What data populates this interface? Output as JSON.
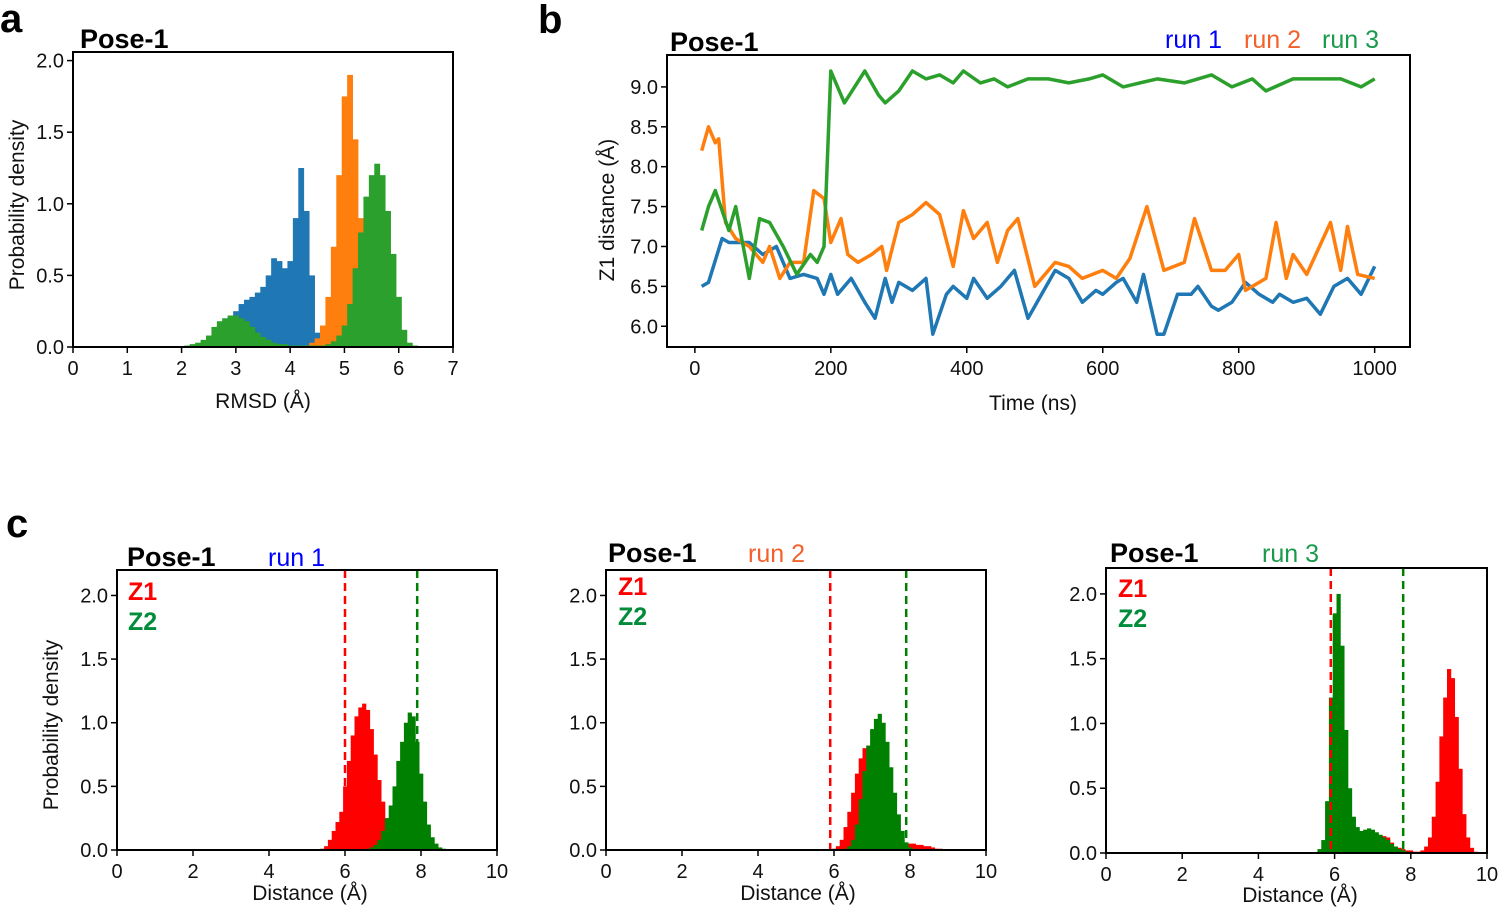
{
  "figure": {
    "letters": [
      "a",
      "b",
      "c"
    ]
  },
  "colors": {
    "run1": "#1f77b4",
    "run2": "#ff7f0e",
    "run3": "#2ca02c",
    "run1_label": "#0000ff",
    "run2_label": "#f4602a",
    "run3_label": "#1a9a4a",
    "z1": "#ff0000",
    "z2": "#008000",
    "z2_label": "#008c3a"
  },
  "chart_data": [
    {
      "id": "a",
      "type": "histogram",
      "title": "Pose-1",
      "xlabel": "RMSD (Å)",
      "ylabel": "Probability density",
      "xlim": [
        0,
        7
      ],
      "ylim": [
        0,
        2.06
      ],
      "xticks": [
        0,
        1,
        2,
        3,
        4,
        5,
        6,
        7
      ],
      "xtick_labels": [
        "0",
        "1",
        "2",
        "3",
        "4",
        "5",
        "6",
        "7"
      ],
      "yticks": [
        0,
        0.5,
        1,
        1.5,
        2
      ],
      "ytick_labels": [
        "0.0",
        "0.5",
        "1.0",
        "1.5",
        "2.0"
      ],
      "bin_width": 0.1,
      "series": [
        {
          "name": "run 1",
          "color_key": "run1",
          "start": 2.4,
          "values": [
            0.01,
            0.03,
            0.08,
            0.15,
            0.2,
            0.22,
            0.25,
            0.3,
            0.33,
            0.35,
            0.38,
            0.42,
            0.5,
            0.62,
            0.6,
            0.55,
            0.6,
            0.9,
            1.25,
            0.95,
            0.5,
            0.1
          ]
        },
        {
          "name": "run 2",
          "color_key": "run2",
          "start": 4.3,
          "values": [
            0.01,
            0.03,
            0.06,
            0.15,
            0.35,
            0.7,
            1.2,
            1.75,
            1.9,
            1.45,
            0.9,
            0.45,
            0.2,
            0.1,
            0.06,
            0.04,
            0.03,
            0.02,
            0.02,
            0.01
          ]
        },
        {
          "name": "run 3",
          "color_key": "run3",
          "start": 2.1,
          "values": [
            0.01,
            0.02,
            0.03,
            0.05,
            0.08,
            0.14,
            0.18,
            0.2,
            0.22,
            0.22,
            0.2,
            0.18,
            0.14,
            0.1,
            0.07,
            0.05,
            0.03,
            0.02,
            0.02,
            0.01,
            0.01,
            0.01,
            0.01,
            0.01,
            0.01,
            0.01,
            0.02,
            0.04,
            0.08,
            0.15,
            0.3,
            0.55,
            0.8,
            1.05,
            1.2,
            1.28,
            1.2,
            0.95,
            0.65,
            0.35,
            0.12,
            0.03,
            0.01
          ]
        }
      ]
    },
    {
      "id": "b",
      "type": "line",
      "title": "Pose-1",
      "xlabel": "Time (ns)",
      "ylabel": "Z1 distance (Å)",
      "xlim": [
        -41,
        1052
      ],
      "ylim": [
        5.74,
        9.4
      ],
      "xticks": [
        0,
        200,
        400,
        600,
        800,
        1000
      ],
      "xtick_labels": [
        "0",
        "200",
        "400",
        "600",
        "800",
        "1000"
      ],
      "yticks": [
        6,
        6.5,
        7,
        7.5,
        8,
        8.5,
        9
      ],
      "ytick_labels": [
        "6.0",
        "6.5",
        "7.0",
        "7.5",
        "8.0",
        "8.5",
        "9.0"
      ],
      "legend": [
        "run 1",
        "run 2",
        "run 3"
      ],
      "legend_position": "top-right",
      "series": [
        {
          "name": "run 1",
          "color_key": "run1",
          "x": [
            10,
            20,
            40,
            50,
            80,
            100,
            120,
            140,
            160,
            180,
            190,
            200,
            210,
            230,
            250,
            265,
            280,
            290,
            300,
            320,
            340,
            350,
            370,
            380,
            400,
            410,
            430,
            450,
            470,
            490,
            510,
            530,
            550,
            570,
            590,
            600,
            620,
            630,
            650,
            660,
            680,
            690,
            710,
            730,
            740,
            760,
            770,
            790,
            810,
            830,
            850,
            860,
            880,
            900,
            920,
            940,
            960,
            980,
            1000
          ],
          "y": [
            6.5,
            6.55,
            7.1,
            7.05,
            7.05,
            6.9,
            7.0,
            6.6,
            6.65,
            6.6,
            6.4,
            6.65,
            6.4,
            6.6,
            6.3,
            6.1,
            6.6,
            6.3,
            6.55,
            6.45,
            6.6,
            5.9,
            6.4,
            6.5,
            6.35,
            6.6,
            6.35,
            6.5,
            6.7,
            6.1,
            6.4,
            6.7,
            6.6,
            6.3,
            6.45,
            6.4,
            6.55,
            6.6,
            6.3,
            6.65,
            5.9,
            5.9,
            6.4,
            6.4,
            6.5,
            6.25,
            6.2,
            6.3,
            6.55,
            6.4,
            6.3,
            6.4,
            6.3,
            6.35,
            6.15,
            6.5,
            6.6,
            6.4,
            6.75
          ]
        },
        {
          "name": "run 2",
          "color_key": "run2",
          "x": [
            10,
            20,
            30,
            35,
            45,
            60,
            80,
            100,
            110,
            125,
            140,
            160,
            175,
            190,
            200,
            215,
            225,
            240,
            260,
            275,
            282,
            300,
            320,
            340,
            360,
            380,
            395,
            410,
            430,
            445,
            460,
            475,
            500,
            530,
            550,
            570,
            600,
            620,
            640,
            665,
            690,
            720,
            735,
            760,
            780,
            800,
            810,
            840,
            855,
            870,
            880,
            900,
            935,
            950,
            960,
            975,
            1000
          ],
          "y": [
            8.2,
            8.5,
            8.3,
            8.35,
            7.3,
            7.1,
            7.0,
            6.8,
            7.0,
            6.6,
            6.8,
            6.8,
            7.7,
            7.6,
            7.05,
            7.35,
            6.9,
            6.8,
            6.9,
            7.0,
            6.7,
            7.3,
            7.4,
            7.55,
            7.4,
            6.75,
            7.45,
            7.1,
            7.3,
            6.8,
            7.2,
            7.35,
            6.5,
            6.8,
            6.75,
            6.6,
            6.7,
            6.6,
            6.85,
            7.5,
            6.7,
            6.8,
            7.35,
            6.7,
            6.7,
            6.9,
            6.45,
            6.6,
            7.3,
            6.6,
            6.9,
            6.65,
            7.3,
            6.7,
            7.25,
            6.65,
            6.6
          ]
        },
        {
          "name": "run 3",
          "color_key": "run3",
          "x": [
            10,
            20,
            30,
            50,
            60,
            80,
            95,
            110,
            130,
            150,
            170,
            180,
            190,
            200,
            220,
            250,
            270,
            280,
            300,
            320,
            340,
            360,
            380,
            395,
            420,
            440,
            460,
            490,
            520,
            550,
            580,
            600,
            630,
            680,
            720,
            760,
            790,
            820,
            840,
            880,
            920,
            950,
            980,
            1000
          ],
          "y": [
            7.2,
            7.5,
            7.7,
            7.2,
            7.5,
            6.6,
            7.35,
            7.3,
            7.0,
            6.65,
            6.9,
            6.8,
            7.0,
            9.2,
            8.8,
            9.2,
            8.9,
            8.8,
            8.95,
            9.2,
            9.1,
            9.15,
            9.05,
            9.2,
            9.05,
            9.1,
            9.0,
            9.1,
            9.1,
            9.05,
            9.1,
            9.15,
            9.0,
            9.1,
            9.05,
            9.15,
            9.0,
            9.1,
            8.95,
            9.1,
            9.1,
            9.1,
            9.0,
            9.1
          ]
        }
      ]
    },
    {
      "id": "c1",
      "type": "histogram",
      "title": "Pose-1",
      "run_label": "run 1",
      "run_color_key": "run1_label",
      "xlabel": "Distance (Å)",
      "ylabel": "Probability density",
      "xlim": [
        0,
        10
      ],
      "ylim": [
        0,
        2.2
      ],
      "xticks": [
        0,
        2,
        4,
        6,
        8,
        10
      ],
      "xtick_labels": [
        "0",
        "2",
        "4",
        "6",
        "8",
        "10"
      ],
      "yticks": [
        0,
        0.5,
        1,
        1.5,
        2
      ],
      "ytick_labels": [
        "0.0",
        "0.5",
        "1.0",
        "1.5",
        "2.0"
      ],
      "legend": [
        "Z1",
        "Z2"
      ],
      "legend_position": "top-left",
      "vlines": [
        {
          "x": 6.0,
          "color_key": "z1",
          "style": "dashed"
        },
        {
          "x": 7.9,
          "color_key": "z2",
          "style": "dashed"
        }
      ],
      "bin_width": 0.1,
      "series": [
        {
          "name": "Z1",
          "color_key": "z1",
          "start": 5.4,
          "values": [
            0.01,
            0.03,
            0.08,
            0.15,
            0.22,
            0.3,
            0.5,
            0.7,
            0.9,
            1.05,
            1.12,
            1.15,
            1.1,
            0.95,
            0.75,
            0.55,
            0.38,
            0.25,
            0.15,
            0.08,
            0.04,
            0.02,
            0.01
          ]
        },
        {
          "name": "Z2",
          "color_key": "z2",
          "start": 6.6,
          "values": [
            0.01,
            0.02,
            0.04,
            0.08,
            0.15,
            0.25,
            0.35,
            0.5,
            0.7,
            0.85,
            1.0,
            1.08,
            1.05,
            0.85,
            0.6,
            0.38,
            0.2,
            0.1,
            0.05,
            0.02,
            0.01
          ]
        }
      ]
    },
    {
      "id": "c2",
      "type": "histogram",
      "title": "Pose-1",
      "run_label": "run 2",
      "run_color_key": "run2_label",
      "xlabel": "Distance (Å)",
      "ylabel": "",
      "xlim": [
        0,
        10
      ],
      "ylim": [
        0,
        2.2
      ],
      "xticks": [
        0,
        2,
        4,
        6,
        8,
        10
      ],
      "xtick_labels": [
        "0",
        "2",
        "4",
        "6",
        "8",
        "10"
      ],
      "yticks": [
        0,
        0.5,
        1,
        1.5,
        2
      ],
      "ytick_labels": [
        "0.0",
        "0.5",
        "1.0",
        "1.5",
        "2.0"
      ],
      "legend": [
        "Z1",
        "Z2"
      ],
      "legend_position": "top-left",
      "vlines": [
        {
          "x": 5.9,
          "color_key": "z1",
          "style": "dashed"
        },
        {
          "x": 7.9,
          "color_key": "z2",
          "style": "dashed"
        }
      ],
      "bin_width": 0.1,
      "series": [
        {
          "name": "Z1",
          "color_key": "z1",
          "start": 6.0,
          "values": [
            0.01,
            0.03,
            0.08,
            0.18,
            0.3,
            0.45,
            0.6,
            0.72,
            0.8,
            0.82,
            0.8,
            0.72,
            0.6,
            0.45,
            0.32,
            0.2,
            0.12,
            0.08,
            0.06,
            0.05,
            0.05,
            0.05,
            0.04,
            0.04,
            0.03,
            0.03,
            0.02,
            0.01,
            0.01
          ]
        },
        {
          "name": "Z2",
          "color_key": "z2",
          "start": 6.3,
          "values": [
            0.01,
            0.03,
            0.08,
            0.2,
            0.4,
            0.62,
            0.82,
            0.95,
            1.03,
            1.07,
            1.0,
            0.85,
            0.65,
            0.45,
            0.28,
            0.15,
            0.06,
            0.02,
            0.01
          ]
        }
      ]
    },
    {
      "id": "c3",
      "type": "histogram",
      "title": "Pose-1",
      "run_label": "run 3",
      "run_color_key": "run3_label",
      "xlabel": "Distance (Å)",
      "ylabel": "",
      "xlim": [
        0,
        10
      ],
      "ylim": [
        0,
        2.2
      ],
      "xticks": [
        0,
        2,
        4,
        6,
        8,
        10
      ],
      "xtick_labels": [
        "0",
        "2",
        "4",
        "6",
        "8",
        "10"
      ],
      "yticks": [
        0,
        0.5,
        1,
        1.5,
        2
      ],
      "ytick_labels": [
        "0.0",
        "0.5",
        "1.0",
        "1.5",
        "2.0"
      ],
      "legend": [
        "Z1",
        "Z2"
      ],
      "legend_position": "top-left",
      "vlines": [
        {
          "x": 5.9,
          "color_key": "z1",
          "style": "dashed"
        },
        {
          "x": 7.8,
          "color_key": "z2",
          "style": "dashed"
        }
      ],
      "bin_width": 0.1,
      "series": [
        {
          "name": "Z1",
          "color_key": "z1",
          "start": 6.5,
          "values": [
            0.1,
            0.12,
            0.14,
            0.15,
            0.16,
            0.16,
            0.15,
            0.14,
            0.13,
            0.12,
            0.08,
            0.05,
            0.04,
            0.03,
            0.02,
            0.02,
            0.01,
            0.01,
            0.02,
            0.05,
            0.12,
            0.28,
            0.55,
            0.9,
            1.2,
            1.42,
            1.35,
            1.05,
            0.65,
            0.3,
            0.12,
            0.04,
            0.01
          ]
        },
        {
          "name": "Z2",
          "color_key": "z2",
          "start": 5.6,
          "values": [
            0.03,
            0.1,
            0.4,
            1.2,
            1.85,
            2.0,
            1.6,
            0.95,
            0.5,
            0.28,
            0.2,
            0.17,
            0.18,
            0.19,
            0.18,
            0.16,
            0.14,
            0.12,
            0.1,
            0.07,
            0.05,
            0.03,
            0.02,
            0.01
          ]
        }
      ]
    }
  ]
}
